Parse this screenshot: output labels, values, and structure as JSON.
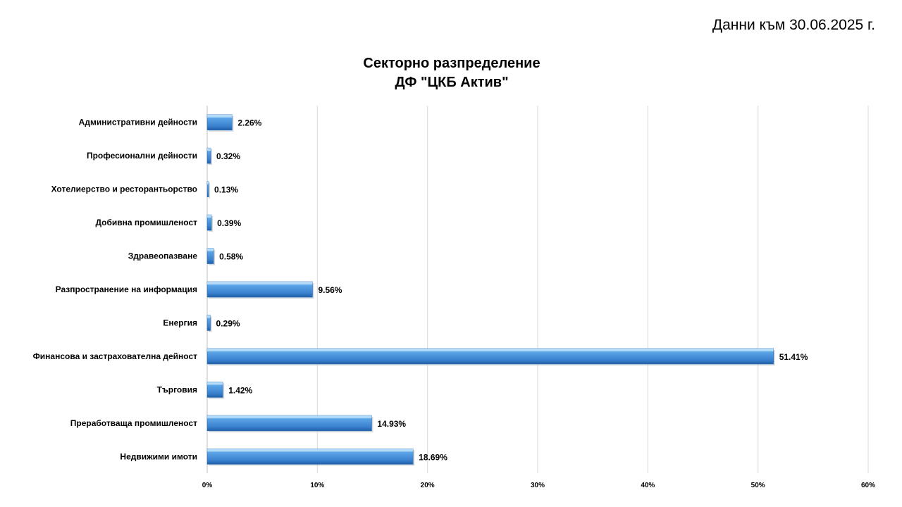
{
  "header": {
    "date_note": "Данни към 30.06.2025 г."
  },
  "chart_data": {
    "type": "bar",
    "orientation": "horizontal",
    "title": [
      "Секторно разпределение",
      "ДФ \"ЦКБ Актив\""
    ],
    "categories": [
      "Административни дейности",
      "Професионални дейности",
      "Хотелиерство и ресторантьорство",
      "Добивна промишленост",
      "Здравеопазване",
      "Разпространение на информация",
      "Енергия",
      "Финансова и застрахователна дейност",
      "Търговия",
      "Преработваща промишленост",
      "Недвижими имоти"
    ],
    "values": [
      2.26,
      0.32,
      0.13,
      0.39,
      0.58,
      9.56,
      0.29,
      51.41,
      1.42,
      14.93,
      18.69
    ],
    "value_labels": [
      "2.26%",
      "0.32%",
      "0.13%",
      "0.39%",
      "0.58%",
      "9.56%",
      "0.29%",
      "51.41%",
      "1.42%",
      "14.93%",
      "18.69%"
    ],
    "xlim": [
      0,
      60
    ],
    "x_ticks": [
      "0%",
      "10%",
      "20%",
      "30%",
      "40%",
      "50%",
      "60%"
    ],
    "grid": "vertical",
    "legend": "none",
    "bar_color": "#4a90d9"
  }
}
